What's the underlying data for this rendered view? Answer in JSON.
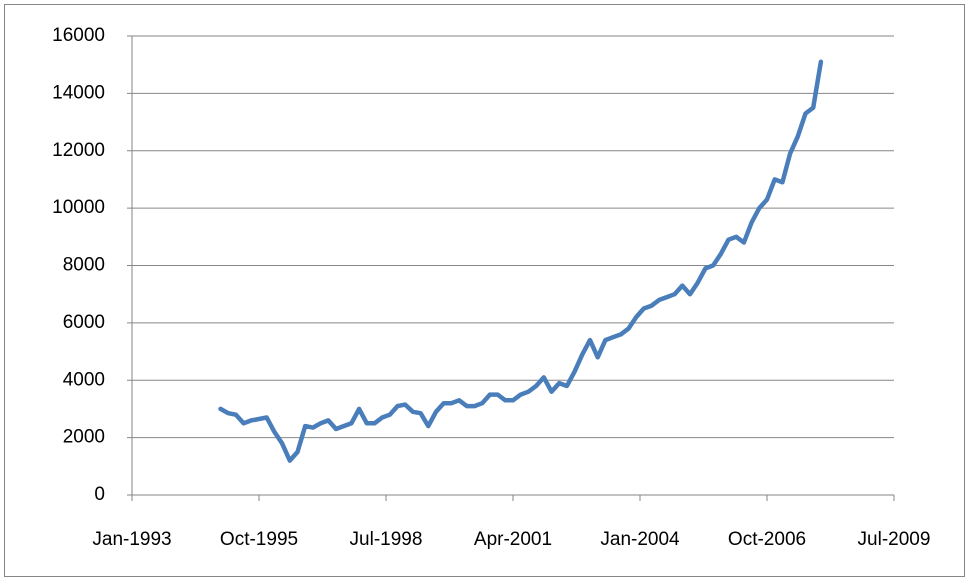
{
  "chart_data": {
    "type": "line",
    "x": [
      "1994-12",
      "1995-02",
      "1995-04",
      "1995-06",
      "1995-08",
      "1995-10",
      "1995-12",
      "1996-02",
      "1996-04",
      "1996-06",
      "1996-08",
      "1996-10",
      "1996-12",
      "1997-02",
      "1997-04",
      "1997-06",
      "1997-08",
      "1997-10",
      "1997-12",
      "1998-02",
      "1998-04",
      "1998-06",
      "1998-08",
      "1998-10",
      "1998-12",
      "1999-02",
      "1999-04",
      "1999-06",
      "1999-08",
      "1999-10",
      "1999-12",
      "2000-02",
      "2000-04",
      "2000-06",
      "2000-08",
      "2000-10",
      "2000-12",
      "2001-02",
      "2001-04",
      "2001-06",
      "2001-08",
      "2001-10",
      "2001-12",
      "2002-02",
      "2002-04",
      "2002-06",
      "2002-08",
      "2002-10",
      "2002-12",
      "2003-02",
      "2003-04",
      "2003-06",
      "2003-08",
      "2003-10",
      "2003-12",
      "2004-02",
      "2004-04",
      "2004-06",
      "2004-08",
      "2004-10",
      "2004-12",
      "2005-02",
      "2005-04",
      "2005-06",
      "2005-08",
      "2005-10",
      "2005-12",
      "2006-02",
      "2006-04",
      "2006-06",
      "2006-08",
      "2006-10",
      "2006-12",
      "2007-02",
      "2007-04",
      "2007-06",
      "2007-08",
      "2007-10",
      "2007-12"
    ],
    "values": [
      3000,
      2850,
      2800,
      2500,
      2600,
      2650,
      2700,
      2200,
      1800,
      1200,
      1500,
      2400,
      2350,
      2500,
      2600,
      2300,
      2400,
      2500,
      3000,
      2500,
      2500,
      2700,
      2800,
      3100,
      3150,
      2900,
      2850,
      2400,
      2900,
      3200,
      3200,
      3300,
      3100,
      3100,
      3200,
      3500,
      3500,
      3300,
      3300,
      3500,
      3600,
      3800,
      4100,
      3600,
      3900,
      3800,
      4300,
      4900,
      5400,
      4800,
      5400,
      5500,
      5600,
      5800,
      6200,
      6500,
      6600,
      6800,
      6900,
      7000,
      7300,
      7000,
      7400,
      7900,
      8000,
      8400,
      8900,
      9000,
      8800,
      9500,
      10000,
      10300,
      11000,
      10900,
      11900,
      12500,
      13300,
      13500,
      15100
    ],
    "color": "#4a7ebb",
    "xlim": [
      "1993-01",
      "2009-07"
    ],
    "xticks": [
      {
        "value": "1993-01",
        "label": "Jan-1993"
      },
      {
        "value": "1995-10",
        "label": "Oct-1995"
      },
      {
        "value": "1998-07",
        "label": "Jul-1998"
      },
      {
        "value": "2001-04",
        "label": "Apr-2001"
      },
      {
        "value": "2004-01",
        "label": "Jan-2004"
      },
      {
        "value": "2006-10",
        "label": "Oct-2006"
      },
      {
        "value": "2009-07",
        "label": "Jul-2009"
      }
    ],
    "ylim": [
      0,
      16000
    ],
    "yticks": [
      0,
      2000,
      4000,
      6000,
      8000,
      10000,
      12000,
      14000,
      16000
    ],
    "grid": true
  }
}
